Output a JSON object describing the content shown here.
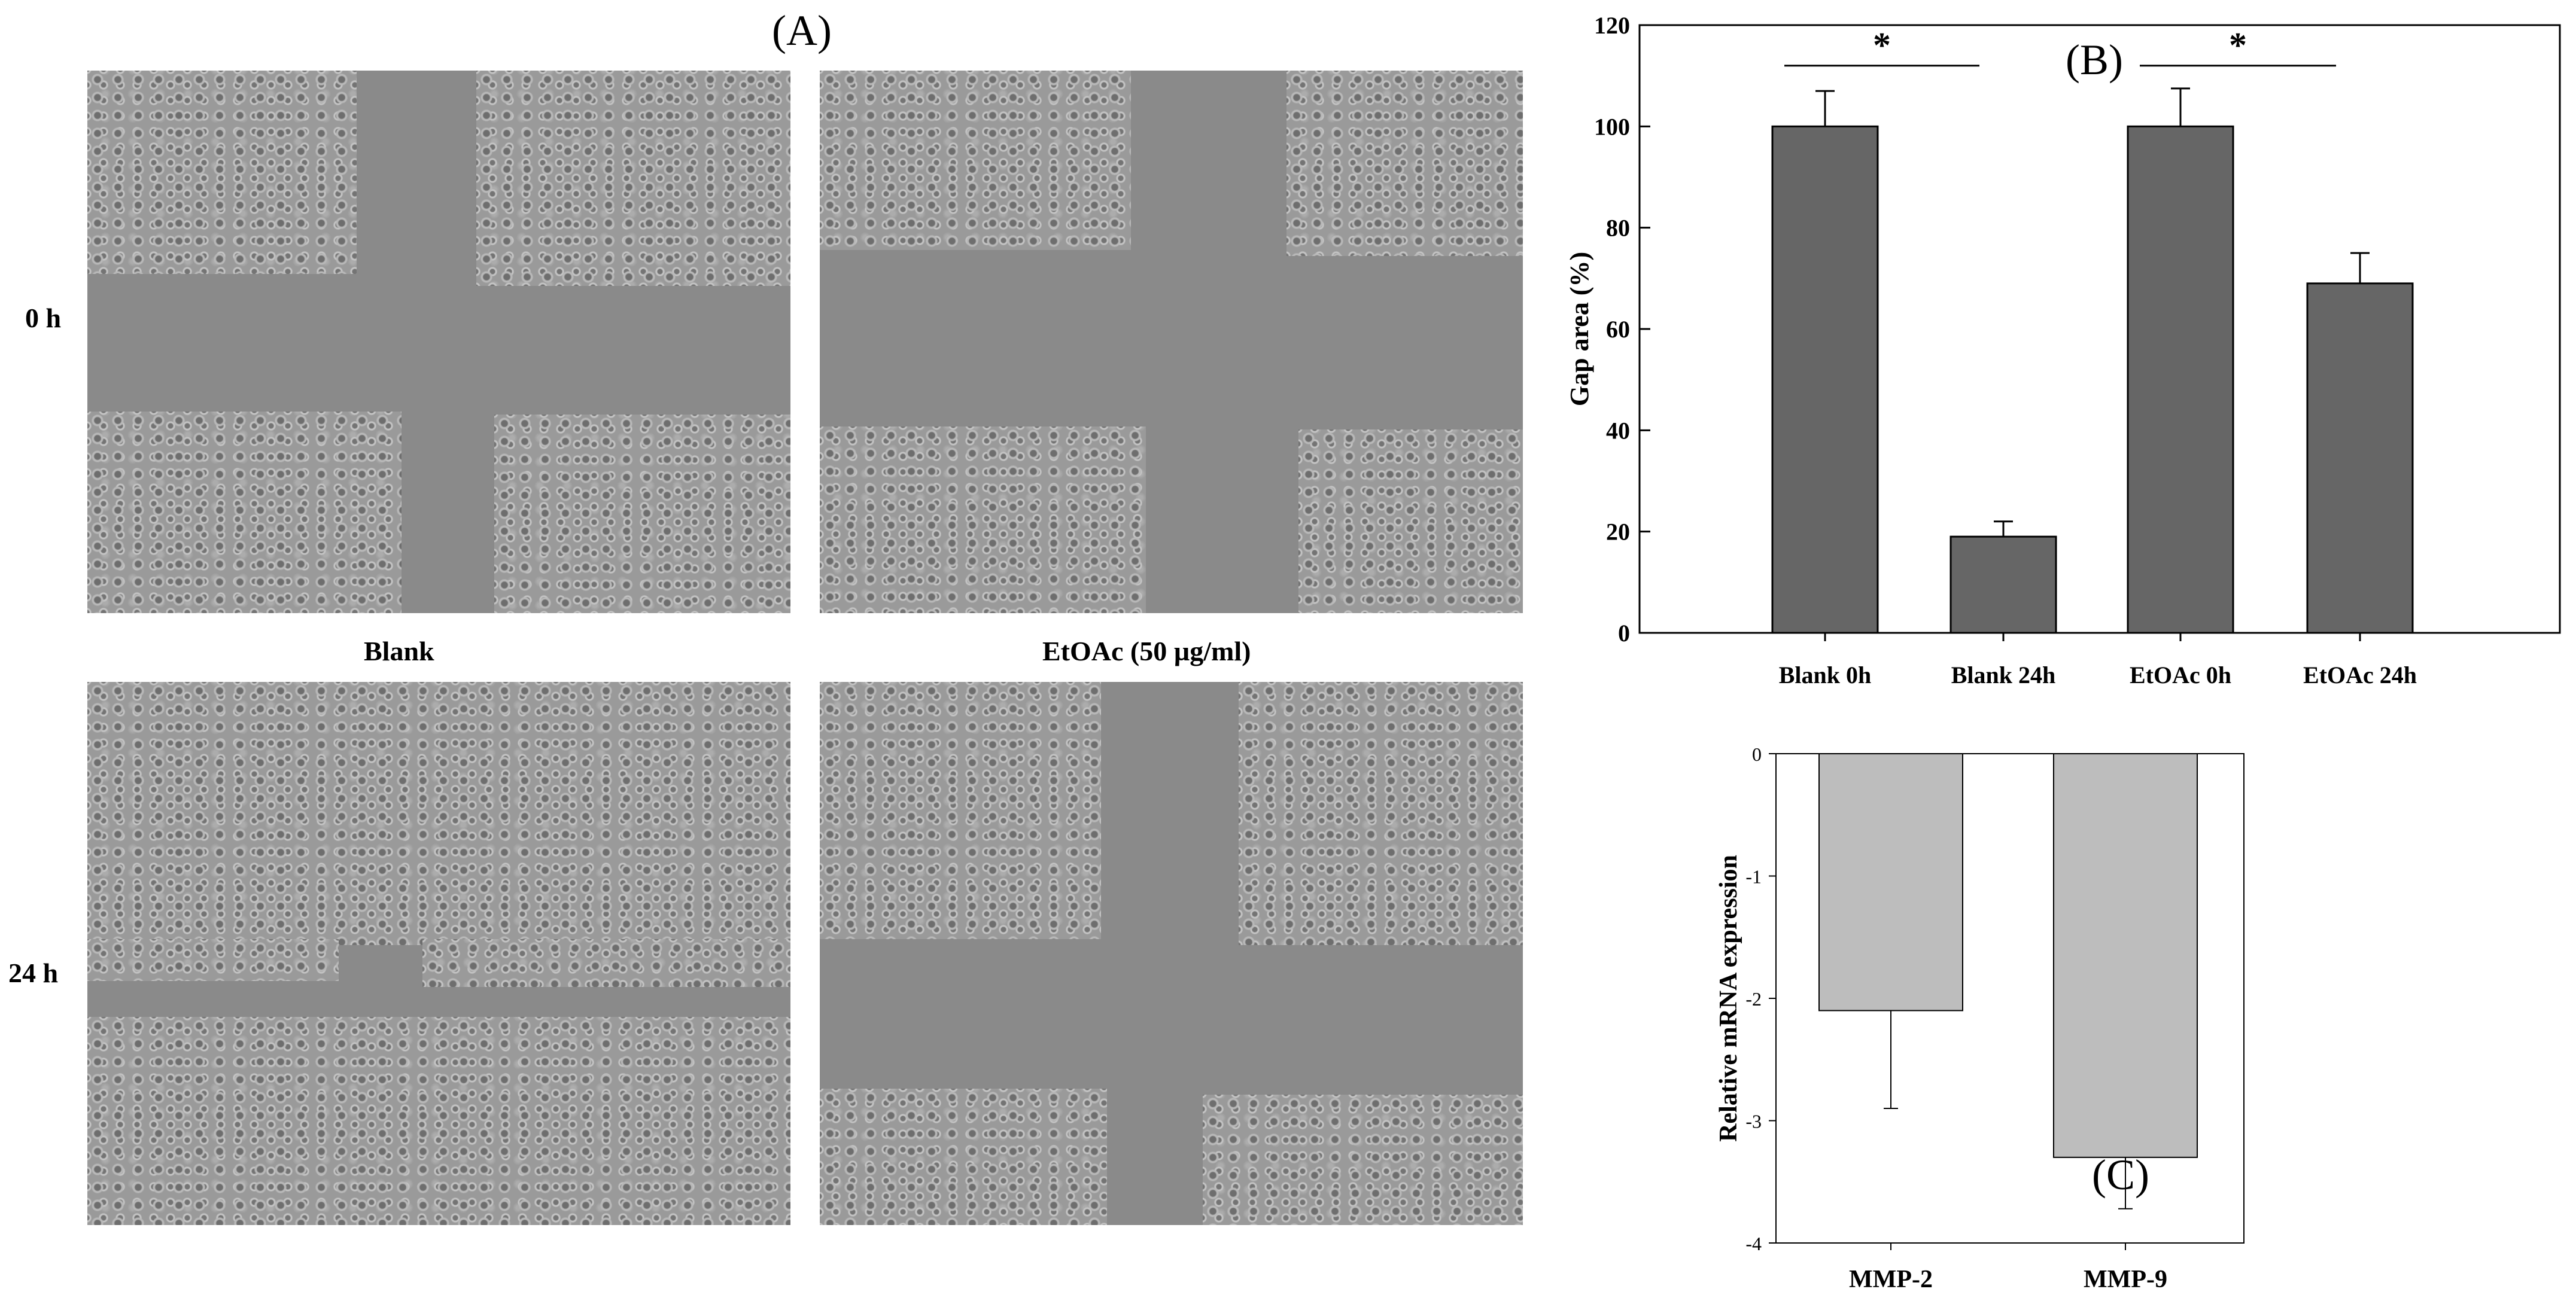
{
  "panelA": {
    "letter": "(A)",
    "rows": [
      "0 h",
      "24 h"
    ],
    "columns": [
      "Blank",
      "EtOAc (50 µg/ml)"
    ]
  },
  "colors": {
    "barB": "#666666",
    "barC": "#bdbdbd",
    "axis": "#000000"
  },
  "chart_data": [
    {
      "type": "bar",
      "panel_label": "(B)",
      "categories": [
        "Blank 0h",
        "Blank 24h",
        "EtOAc 0h",
        "EtOAc 24h"
      ],
      "values": [
        100,
        19,
        100,
        69
      ],
      "errors": [
        7,
        3,
        7.5,
        6
      ],
      "xlabel": "",
      "ylabel": "Gap area (%)",
      "ylim": [
        0,
        120
      ],
      "yticks": [
        0,
        20,
        40,
        60,
        80,
        100,
        120
      ],
      "significance": [
        {
          "from": "Blank 0h",
          "to": "Blank 24h",
          "label": "*"
        },
        {
          "from": "EtOAc 0h",
          "to": "EtOAc 24h",
          "label": "*"
        }
      ],
      "grid": false
    },
    {
      "type": "bar",
      "panel_label": "(C)",
      "categories": [
        "MMP-2",
        "MMP-9"
      ],
      "values": [
        -2.1,
        -3.3
      ],
      "errors": [
        0.8,
        0.42
      ],
      "xlabel": "",
      "ylabel": "Relative mRNA expression",
      "ylim": [
        -4,
        0
      ],
      "yticks": [
        -4,
        -3,
        -2,
        -1,
        0
      ],
      "grid": false
    }
  ]
}
